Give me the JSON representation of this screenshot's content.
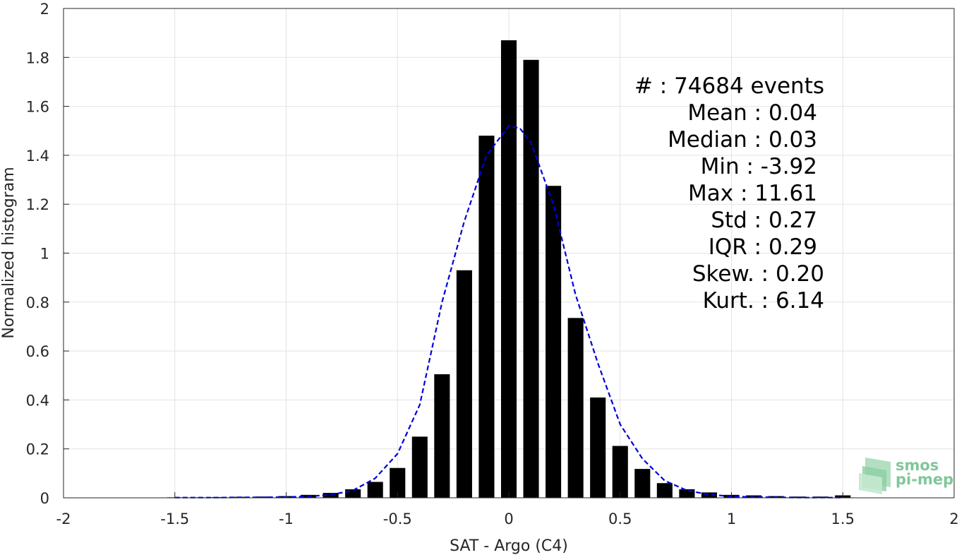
{
  "chart_data": {
    "type": "bar",
    "xlabel": "SAT - Argo (C4)",
    "ylabel": "Normalized histogram",
    "xlim": [
      -2,
      2
    ],
    "ylim": [
      0,
      2
    ],
    "grid": true,
    "x_ticks": [
      -2,
      -1.5,
      -1,
      -0.5,
      0,
      0.5,
      1,
      1.5,
      2
    ],
    "x_tick_labels": [
      "-2",
      "-1.5",
      "-1",
      "-0.5",
      "0",
      "0.5",
      "1",
      "1.5",
      "2"
    ],
    "y_ticks": [
      0,
      0.2,
      0.4,
      0.6,
      0.8,
      1,
      1.2,
      1.4,
      1.6,
      1.8,
      2
    ],
    "y_tick_labels": [
      "0",
      "0.2",
      "0.4",
      "0.6",
      "0.8",
      "1",
      "1.2",
      "1.4",
      "1.6",
      "1.8",
      "2"
    ],
    "bar_width": 0.07,
    "bars": {
      "color": "#000000",
      "x": [
        -1.5,
        -1.4,
        -1.3,
        -1.2,
        -1.1,
        -1.0,
        -0.9,
        -0.8,
        -0.7,
        -0.6,
        -0.5,
        -0.4,
        -0.3,
        -0.2,
        -0.1,
        0.0,
        0.1,
        0.2,
        0.3,
        0.4,
        0.5,
        0.6,
        0.7,
        0.8,
        0.9,
        1.0,
        1.1,
        1.2,
        1.3,
        1.4,
        1.5
      ],
      "values": [
        0.002,
        0.002,
        0.003,
        0.004,
        0.005,
        0.007,
        0.012,
        0.02,
        0.035,
        0.065,
        0.122,
        0.25,
        0.505,
        0.93,
        1.48,
        1.87,
        1.79,
        1.275,
        0.735,
        0.41,
        0.212,
        0.118,
        0.06,
        0.035,
        0.022,
        0.012,
        0.01,
        0.007,
        0.005,
        0.005,
        0.01
      ]
    },
    "fit": {
      "color": "#0000dd",
      "style": "dashed",
      "x": [
        -1.5,
        -1.4,
        -1.3,
        -1.2,
        -1.1,
        -1.0,
        -0.9,
        -0.8,
        -0.7,
        -0.6,
        -0.5,
        -0.4,
        -0.3,
        -0.2,
        -0.1,
        0.0,
        0.05,
        0.1,
        0.2,
        0.3,
        0.4,
        0.5,
        0.6,
        0.7,
        0.8,
        0.9,
        1.0,
        1.1,
        1.2,
        1.3,
        1.4,
        1.5
      ],
      "y": [
        0.001,
        0.001,
        0.001,
        0.002,
        0.002,
        0.003,
        0.006,
        0.012,
        0.03,
        0.08,
        0.18,
        0.38,
        0.8,
        1.13,
        1.4,
        1.52,
        1.51,
        1.45,
        1.2,
        0.83,
        0.55,
        0.3,
        0.16,
        0.07,
        0.03,
        0.013,
        0.006,
        0.003,
        0.002,
        0.001,
        0.001,
        0.001
      ]
    },
    "annotations": [
      "#  : 74684 events",
      "Mean : 0.04",
      "Median : 0.03",
      "Min : -3.92",
      "Max : 11.61",
      "Std : 0.27",
      "IQR : 0.29",
      "Skew. : 0.20",
      "Kurt. : 6.14"
    ]
  },
  "logo": {
    "line1": "smos",
    "line2": "pi-mep",
    "color": "#7fc79a"
  }
}
